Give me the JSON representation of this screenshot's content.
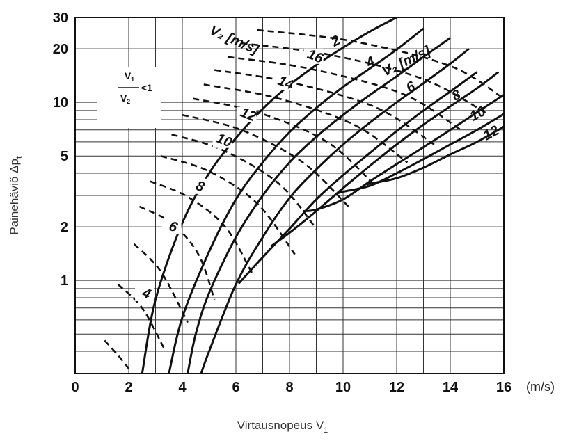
{
  "chart_data": {
    "type": "line",
    "title": "",
    "xlabel": "Virtausnopeus V",
    "xlabel_sub": "1",
    "ylabel": "Painehäviö Δp",
    "ylabel_sub": "t",
    "x_unit": "(m/s)",
    "xlim": [
      0,
      16
    ],
    "ylim": [
      0.3,
      30
    ],
    "yscale": "log",
    "grid": true,
    "x_ticks": [
      "0",
      "2",
      "4",
      "6",
      "8",
      "10",
      "12",
      "14",
      "16"
    ],
    "y_ticks": [
      {
        "value": 1,
        "label": "1"
      },
      {
        "value": 2,
        "label": "2"
      },
      {
        "value": 5,
        "label": "5"
      },
      {
        "value": 10,
        "label": "10"
      },
      {
        "value": 20,
        "label": "20"
      },
      {
        "value": 30,
        "label": "30"
      }
    ],
    "legend_box": {
      "numerator": "V",
      "numerator_sub": "1",
      "denominator": "V",
      "denominator_sub": "2",
      "relation": "<1"
    },
    "solid_family_title": "V₂ [m/s]",
    "dashed_family_title": "V₂ [m/s]",
    "solid_series": [
      {
        "name": "2",
        "x": [
          2.5,
          3,
          4,
          5,
          6,
          7,
          8,
          9,
          10,
          11,
          12
        ],
        "y": [
          0.3,
          0.78,
          2.1,
          4.0,
          6.3,
          9.2,
          12.5,
          16.2,
          20.3,
          25.0,
          30.0
        ]
      },
      {
        "name": "4",
        "x": [
          3.5,
          4,
          5,
          6,
          7,
          8,
          9,
          10,
          11,
          12,
          13
        ],
        "y": [
          0.3,
          0.62,
          1.45,
          2.85,
          4.6,
          6.8,
          9.3,
          12.2,
          15.5,
          19.8,
          26.0
        ]
      },
      {
        "name": "6",
        "x": [
          4.2,
          4.5,
          5,
          6,
          7,
          8,
          9,
          10,
          11,
          12,
          13,
          14
        ],
        "y": [
          0.3,
          0.5,
          0.85,
          1.75,
          3.0,
          4.6,
          6.4,
          8.5,
          11.0,
          14.0,
          18.0,
          23.0
        ]
      },
      {
        "name": "",
        "x": [
          4.7,
          5,
          6,
          7,
          8,
          9,
          10,
          11,
          12,
          13,
          14,
          14.7
        ],
        "y": [
          0.3,
          0.4,
          0.95,
          1.75,
          2.9,
          4.2,
          5.8,
          7.7,
          10.0,
          12.8,
          16.5,
          20.0
        ]
      },
      {
        "name": "8",
        "x": [
          6.1,
          7,
          8,
          9,
          10,
          11,
          12,
          13,
          14,
          15
        ],
        "y": [
          0.96,
          1.35,
          1.95,
          2.85,
          3.9,
          5.2,
          6.9,
          9.0,
          11.5,
          14.8
        ]
      },
      {
        "name": "",
        "x": [
          7.3,
          8,
          9,
          10,
          11,
          12,
          13,
          14,
          15,
          15.8
        ],
        "y": [
          1.55,
          1.85,
          2.45,
          3.3,
          4.4,
          5.8,
          7.5,
          9.5,
          12.0,
          14.8
        ]
      },
      {
        "name": "10",
        "x": [
          8.5,
          9,
          10,
          11,
          12,
          13,
          14,
          15,
          16
        ],
        "y": [
          2.45,
          2.5,
          2.85,
          3.6,
          4.5,
          5.6,
          7.0,
          8.8,
          11.0
        ]
      },
      {
        "name": "",
        "x": [
          9.7,
          10,
          11,
          12,
          13,
          14,
          15,
          16
        ],
        "y": [
          3.05,
          3.15,
          3.4,
          4.0,
          4.8,
          5.8,
          7.0,
          8.6
        ]
      },
      {
        "name": "12",
        "x": [
          10.9,
          11,
          12,
          13,
          14,
          15,
          16
        ],
        "y": [
          3.45,
          3.5,
          3.75,
          4.3,
          5.1,
          6.0,
          7.3
        ]
      }
    ],
    "dashed_series": [
      {
        "name": "",
        "x": [
          1.1,
          1.6,
          2.0
        ],
        "y": [
          0.46,
          0.38,
          0.32
        ]
      },
      {
        "name": "4",
        "x": [
          1.6,
          2.5,
          3.3
        ],
        "y": [
          0.95,
          0.7,
          0.42
        ]
      },
      {
        "name": "",
        "x": [
          2.2,
          3.2,
          4.2
        ],
        "y": [
          1.6,
          1.12,
          0.58
        ]
      },
      {
        "name": "6",
        "x": [
          2.4,
          3.6,
          4.6,
          5.2
        ],
        "y": [
          2.6,
          2.1,
          1.4,
          0.78
        ]
      },
      {
        "name": "",
        "x": [
          2.8,
          4.2,
          5.6,
          6.6
        ],
        "y": [
          3.6,
          2.95,
          2.0,
          1.1
        ]
      },
      {
        "name": "8",
        "x": [
          3.2,
          5.0,
          6.8,
          8.2
        ],
        "y": [
          5.0,
          4.1,
          2.7,
          1.4
        ]
      },
      {
        "name": "",
        "x": [
          3.6,
          5.5,
          7.6,
          9.0
        ],
        "y": [
          6.6,
          5.4,
          3.5,
          1.95
        ]
      },
      {
        "name": "10",
        "x": [
          4.0,
          6.2,
          8.5,
          10.2
        ],
        "y": [
          8.5,
          7.0,
          4.6,
          2.6
        ]
      },
      {
        "name": "",
        "x": [
          4.4,
          6.8,
          9.4,
          11.2
        ],
        "y": [
          10.5,
          8.8,
          6.0,
          3.4
        ]
      },
      {
        "name": "12",
        "x": [
          4.8,
          7.5,
          10.4,
          12.4
        ],
        "y": [
          12.6,
          10.6,
          7.5,
          4.6
        ]
      },
      {
        "name": "",
        "x": [
          5.2,
          8.0,
          11.2,
          13.4
        ],
        "y": [
          15.2,
          13.0,
          9.4,
          5.8
        ]
      },
      {
        "name": "14",
        "x": [
          5.7,
          8.7,
          12.2,
          14.4
        ],
        "y": [
          18.0,
          15.5,
          11.2,
          7.0
        ]
      },
      {
        "name": "",
        "x": [
          6.2,
          9.5,
          13.0,
          15.4
        ],
        "y": [
          21.5,
          18.5,
          13.5,
          8.6
        ]
      },
      {
        "name": "16",
        "x": [
          6.8,
          10.4,
          14.0,
          16.0
        ],
        "y": [
          25.5,
          22.0,
          16.0,
          10.5
        ]
      }
    ]
  }
}
